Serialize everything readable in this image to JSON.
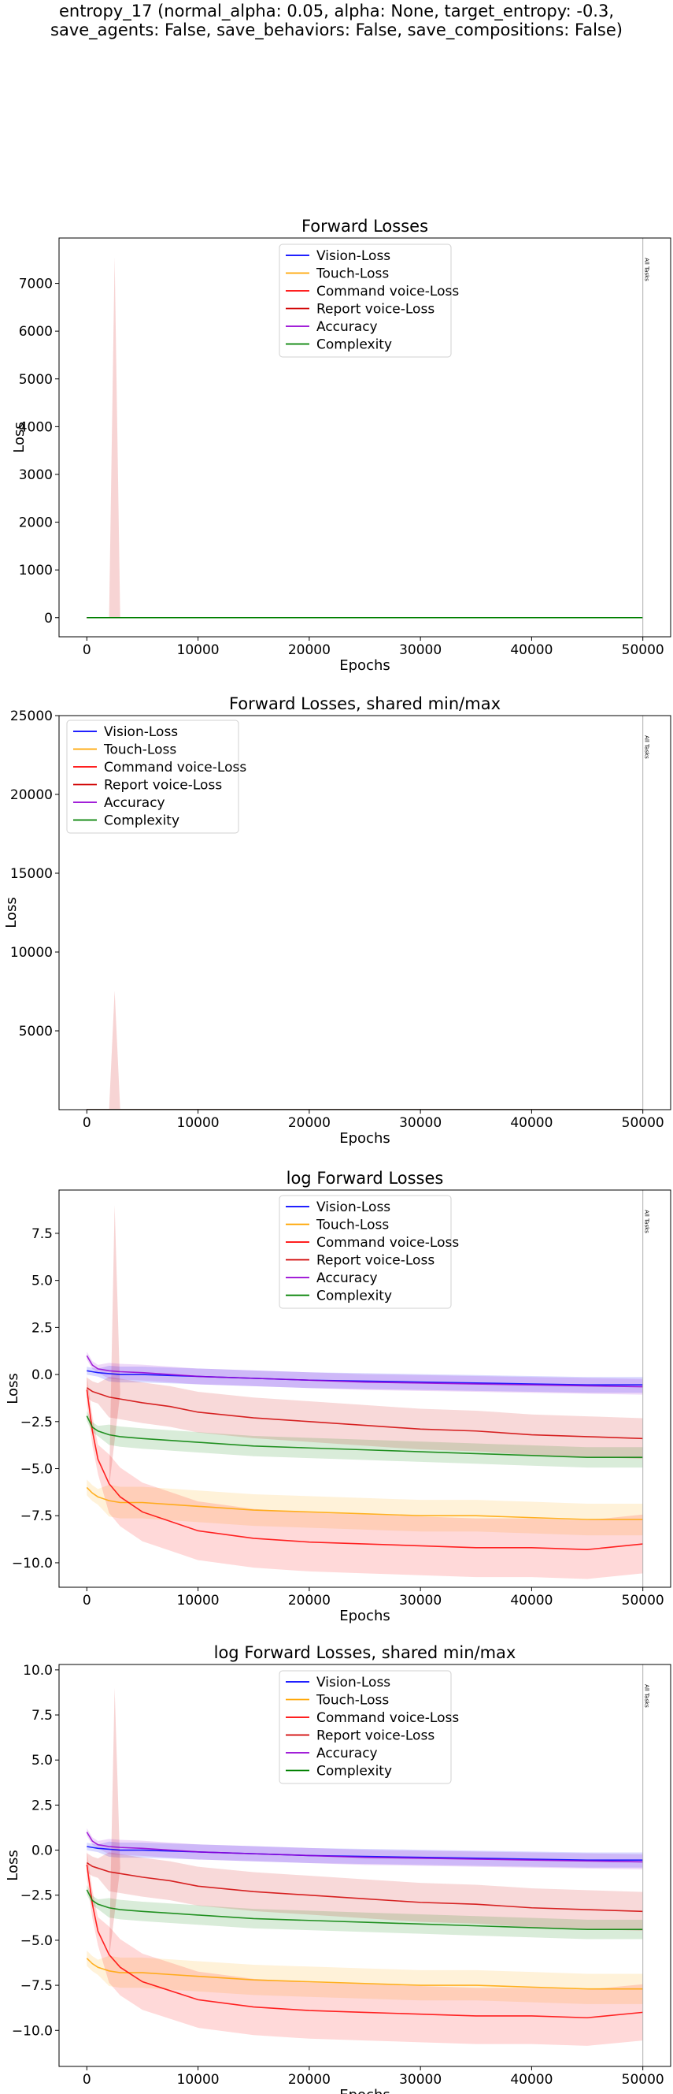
{
  "figure": {
    "title_line1": "entropy_17 (normal_alpha: 0.05, alpha: None, target_entropy: -0.3,",
    "title_line2": "save_agents: False, save_behaviors: False, save_compositions: False)"
  },
  "colors": {
    "vision": "#0000ff",
    "touch": "#ffa500",
    "command": "#ff0000",
    "report": "#d00000",
    "accuracy": "#9400d3",
    "complexity": "#008000"
  },
  "chart_data": [
    {
      "type": "line",
      "title": "Forward Losses",
      "xlabel": "Epochs",
      "ylabel": "Loss",
      "xlim": [
        -2500,
        52500
      ],
      "ylim": [
        -400,
        7950
      ],
      "xticks": [
        0,
        10000,
        20000,
        30000,
        40000,
        50000
      ],
      "yticks": [
        0,
        1000,
        2000,
        3000,
        4000,
        5000,
        6000,
        7000
      ],
      "legend_position": "top-center",
      "grid": false,
      "annotation": {
        "text": "All Tasks",
        "x": 50000
      },
      "series": [
        {
          "name": "Vision-Loss",
          "color": "#0000ff"
        },
        {
          "name": "Touch-Loss",
          "color": "#ffa500"
        },
        {
          "name": "Command voice-Loss",
          "color": "#ff0000"
        },
        {
          "name": "Report voice-Loss",
          "color": "#d00000"
        },
        {
          "name": "Accuracy",
          "color": "#9400d3"
        },
        {
          "name": "Complexity",
          "color": "#008000"
        }
      ],
      "spike": {
        "x": [
          2000,
          2500,
          3000
        ],
        "y": [
          0,
          7550,
          0
        ]
      },
      "flat_value": 0
    },
    {
      "type": "line",
      "title": "Forward Losses, shared min/max",
      "xlabel": "Epochs",
      "ylabel": "Loss",
      "xlim": [
        -2500,
        52500
      ],
      "ylim": [
        0,
        25000
      ],
      "xticks": [
        0,
        10000,
        20000,
        30000,
        40000,
        50000
      ],
      "yticks": [
        5000,
        10000,
        15000,
        20000,
        25000
      ],
      "legend_position": "top-left",
      "grid": false,
      "annotation": {
        "text": "All Tasks",
        "x": 50000
      },
      "series": [
        {
          "name": "Vision-Loss",
          "color": "#0000ff"
        },
        {
          "name": "Touch-Loss",
          "color": "#ffa500"
        },
        {
          "name": "Command voice-Loss",
          "color": "#ff0000"
        },
        {
          "name": "Report voice-Loss",
          "color": "#d00000"
        },
        {
          "name": "Accuracy",
          "color": "#9400d3"
        },
        {
          "name": "Complexity",
          "color": "#008000"
        }
      ],
      "spike": {
        "x": [
          2000,
          2500,
          3000
        ],
        "y": [
          0,
          7550,
          0
        ]
      },
      "flat_value": 0
    },
    {
      "type": "line",
      "title": "log Forward Losses",
      "xlabel": "Epochs",
      "ylabel": "Loss",
      "xlim": [
        -2500,
        52500
      ],
      "ylim": [
        -11.3,
        9.8
      ],
      "xticks": [
        0,
        10000,
        20000,
        30000,
        40000,
        50000
      ],
      "yticks": [
        -10.0,
        -7.5,
        -5.0,
        -2.5,
        0.0,
        2.5,
        5.0,
        7.5
      ],
      "legend_position": "top-center",
      "grid": false,
      "annotation": {
        "text": "All Tasks",
        "x": 50000
      },
      "x": [
        0,
        500,
        1000,
        2000,
        3000,
        5000,
        7500,
        10000,
        15000,
        20000,
        25000,
        30000,
        35000,
        40000,
        45000,
        50000
      ],
      "series": [
        {
          "name": "Vision-Loss",
          "color": "#0000ff",
          "y": [
            0.2,
            0.15,
            0.1,
            0.05,
            0.0,
            0.0,
            -0.05,
            -0.1,
            -0.2,
            -0.3,
            -0.35,
            -0.4,
            -0.45,
            -0.5,
            -0.55,
            -0.55
          ]
        },
        {
          "name": "Touch-Loss",
          "color": "#ffa500",
          "y": [
            -6.0,
            -6.3,
            -6.5,
            -6.7,
            -6.8,
            -6.8,
            -6.9,
            -7.0,
            -7.2,
            -7.3,
            -7.4,
            -7.5,
            -7.5,
            -7.6,
            -7.7,
            -7.7
          ]
        },
        {
          "name": "Command voice-Loss",
          "color": "#ff0000",
          "y": [
            -0.8,
            -3.0,
            -4.5,
            -5.8,
            -6.5,
            -7.3,
            -7.8,
            -8.3,
            -8.7,
            -8.9,
            -9.0,
            -9.1,
            -9.2,
            -9.2,
            -9.3,
            -9.0
          ]
        },
        {
          "name": "Report voice-Loss",
          "color": "#d00000",
          "y": [
            -0.7,
            -0.9,
            -1.0,
            -1.2,
            -1.3,
            -1.5,
            -1.7,
            -2.0,
            -2.3,
            -2.5,
            -2.7,
            -2.9,
            -3.0,
            -3.2,
            -3.3,
            -3.4
          ]
        },
        {
          "name": "Accuracy",
          "color": "#9400d3",
          "y": [
            1.0,
            0.5,
            0.3,
            0.2,
            0.15,
            0.1,
            0.0,
            -0.1,
            -0.2,
            -0.3,
            -0.4,
            -0.45,
            -0.5,
            -0.55,
            -0.6,
            -0.65
          ]
        },
        {
          "name": "Complexity",
          "color": "#008000",
          "y": [
            -2.2,
            -2.8,
            -3.0,
            -3.2,
            -3.3,
            -3.4,
            -3.5,
            -3.6,
            -3.8,
            -3.9,
            -4.0,
            -4.1,
            -4.2,
            -4.3,
            -4.4,
            -4.4
          ]
        }
      ],
      "spike": {
        "x": [
          2000,
          2500,
          3000
        ],
        "y": [
          -6.0,
          9.0,
          -1.0
        ]
      }
    },
    {
      "type": "line",
      "title": "log Forward Losses, shared min/max",
      "xlabel": "Epochs",
      "ylabel": "Loss",
      "xlim": [
        -2500,
        52500
      ],
      "ylim": [
        -12.0,
        10.3
      ],
      "xticks": [
        0,
        10000,
        20000,
        30000,
        40000,
        50000
      ],
      "yticks": [
        -10.0,
        -7.5,
        -5.0,
        -2.5,
        0.0,
        2.5,
        5.0,
        7.5,
        10.0
      ],
      "legend_position": "top-center",
      "grid": false,
      "annotation": {
        "text": "All Tasks",
        "x": 50000
      },
      "x": [
        0,
        500,
        1000,
        2000,
        3000,
        5000,
        7500,
        10000,
        15000,
        20000,
        25000,
        30000,
        35000,
        40000,
        45000,
        50000
      ],
      "series": [
        {
          "name": "Vision-Loss",
          "color": "#0000ff",
          "y": [
            0.2,
            0.15,
            0.1,
            0.05,
            0.0,
            0.0,
            -0.05,
            -0.1,
            -0.2,
            -0.3,
            -0.35,
            -0.4,
            -0.45,
            -0.5,
            -0.55,
            -0.55
          ]
        },
        {
          "name": "Touch-Loss",
          "color": "#ffa500",
          "y": [
            -6.0,
            -6.3,
            -6.5,
            -6.7,
            -6.8,
            -6.8,
            -6.9,
            -7.0,
            -7.2,
            -7.3,
            -7.4,
            -7.5,
            -7.5,
            -7.6,
            -7.7,
            -7.7
          ]
        },
        {
          "name": "Command voice-Loss",
          "color": "#ff0000",
          "y": [
            -0.8,
            -3.0,
            -4.5,
            -5.8,
            -6.5,
            -7.3,
            -7.8,
            -8.3,
            -8.7,
            -8.9,
            -9.0,
            -9.1,
            -9.2,
            -9.2,
            -9.3,
            -9.0
          ]
        },
        {
          "name": "Report voice-Loss",
          "color": "#d00000",
          "y": [
            -0.7,
            -0.9,
            -1.0,
            -1.2,
            -1.3,
            -1.5,
            -1.7,
            -2.0,
            -2.3,
            -2.5,
            -2.7,
            -2.9,
            -3.0,
            -3.2,
            -3.3,
            -3.4
          ]
        },
        {
          "name": "Accuracy",
          "color": "#9400d3",
          "y": [
            1.0,
            0.5,
            0.3,
            0.2,
            0.15,
            0.1,
            0.0,
            -0.1,
            -0.2,
            -0.3,
            -0.4,
            -0.45,
            -0.5,
            -0.55,
            -0.6,
            -0.65
          ]
        },
        {
          "name": "Complexity",
          "color": "#008000",
          "y": [
            -2.2,
            -2.8,
            -3.0,
            -3.2,
            -3.3,
            -3.4,
            -3.5,
            -3.6,
            -3.8,
            -3.9,
            -4.0,
            -4.1,
            -4.2,
            -4.3,
            -4.4,
            -4.4
          ]
        }
      ],
      "spike": {
        "x": [
          2000,
          2500,
          3000
        ],
        "y": [
          -6.0,
          9.0,
          -1.0
        ]
      }
    }
  ]
}
